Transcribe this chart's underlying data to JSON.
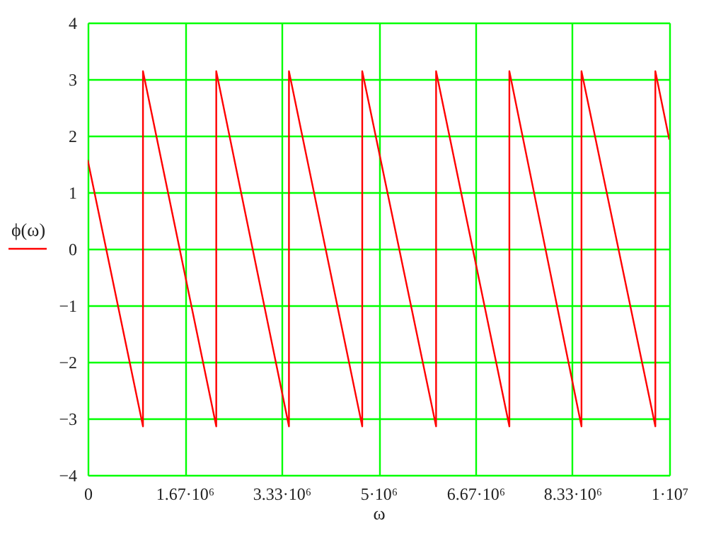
{
  "chart_data": {
    "type": "line",
    "xlabel": "ω",
    "legend": "left",
    "grid": true,
    "line_style": "solid",
    "marker": "none",
    "x": [
      0,
      950000,
      950000,
      2210000,
      2210000,
      3460000,
      3460000,
      4720000,
      4720000,
      5990000,
      5990000,
      7250000,
      7250000,
      8490000,
      8490000,
      9760000,
      9760000,
      10000000
    ],
    "series": [
      {
        "name": "ϕ(ω)",
        "color": "#ff0000",
        "values": [
          1.57,
          -3.14,
          3.14,
          -3.14,
          3.14,
          -3.14,
          3.14,
          -3.14,
          3.14,
          -3.14,
          3.14,
          -3.14,
          3.14,
          -3.14,
          3.14,
          -3.14,
          3.14,
          1.93
        ]
      }
    ],
    "xlim": [
      0,
      10000000
    ],
    "xticks": [
      0,
      {
        "value": 1666667,
        "label": "1.67·10⁶"
      },
      {
        "value": 3333333,
        "label": "3.33·10⁶"
      },
      {
        "value": 5000000,
        "label": "5·10⁶"
      },
      {
        "value": 6666667,
        "label": "6.67·10⁶"
      },
      {
        "value": 8333333,
        "label": "8.33·10⁶"
      },
      {
        "value": 10000000,
        "label": "1·10⁷"
      }
    ],
    "ylim": [
      -4,
      4
    ],
    "yticks": [
      -4,
      -3,
      -2,
      -1,
      0,
      1,
      2,
      3,
      4
    ]
  }
}
